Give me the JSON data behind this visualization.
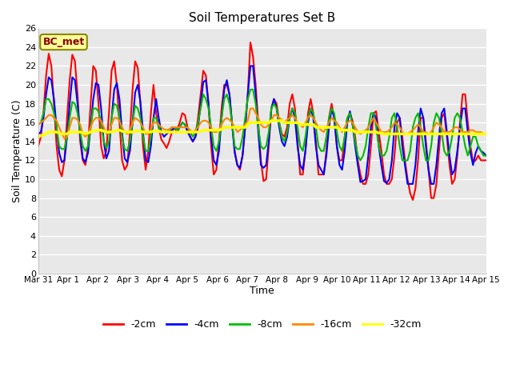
{
  "title": "Soil Temperatures Set B",
  "xlabel": "Time",
  "ylabel": "Soil Temperature (C)",
  "annotation": "BC_met",
  "ylim": [
    0,
    26
  ],
  "yticks": [
    0,
    2,
    4,
    6,
    8,
    10,
    12,
    14,
    16,
    18,
    20,
    22,
    24,
    26
  ],
  "xtick_labels": [
    "Mar 31",
    "Apr 1",
    "Apr 2",
    "Apr 3",
    "Apr 4",
    "Apr 5",
    "Apr 6",
    "Apr 7",
    "Apr 8",
    "Apr 9",
    "Apr 10",
    "Apr 11",
    "Apr 12",
    "Apr 13",
    "Apr 14",
    "Apr 15"
  ],
  "line_colors": {
    "-2cm": "#FF0000",
    "-4cm": "#0000FF",
    "-8cm": "#00BB00",
    "-16cm": "#FF8800",
    "-32cm": "#FFFF00"
  },
  "line_widths": {
    "-2cm": 1.5,
    "-4cm": 1.5,
    "-8cm": 1.5,
    "-16cm": 1.5,
    "-32cm": 2.5
  },
  "n_points": 337,
  "series": {
    "-2cm": [
      13.5,
      14.5,
      17.0,
      21.0,
      23.3,
      22.0,
      18.0,
      13.5,
      11.0,
      10.3,
      12.0,
      16.5,
      20.5,
      23.2,
      22.5,
      19.0,
      14.0,
      12.0,
      11.5,
      13.5,
      18.0,
      22.0,
      21.5,
      18.0,
      13.5,
      12.2,
      13.0,
      17.0,
      21.5,
      22.5,
      20.0,
      16.0,
      12.0,
      11.0,
      11.5,
      15.0,
      19.5,
      22.5,
      21.8,
      18.0,
      13.5,
      11.0,
      13.0,
      17.0,
      20.0,
      17.0,
      15.5,
      14.2,
      13.8,
      13.3,
      14.0,
      15.0,
      15.5,
      15.2,
      16.0,
      17.0,
      16.8,
      15.5,
      14.5,
      14.0,
      14.5,
      16.5,
      19.0,
      21.5,
      21.0,
      18.0,
      13.5,
      10.5,
      11.0,
      14.0,
      17.5,
      20.0,
      20.0,
      19.0,
      16.0,
      13.0,
      11.5,
      11.0,
      12.5,
      15.5,
      19.0,
      24.5,
      23.0,
      20.0,
      16.0,
      12.0,
      9.8,
      10.0,
      13.5,
      17.5,
      18.5,
      18.0,
      16.0,
      14.8,
      14.5,
      15.5,
      18.0,
      19.0,
      17.5,
      14.0,
      10.5,
      10.5,
      13.0,
      17.0,
      18.5,
      17.0,
      14.0,
      10.5,
      10.5,
      10.5,
      13.0,
      16.5,
      18.0,
      16.5,
      13.5,
      12.0,
      12.0,
      14.5,
      16.5,
      17.0,
      16.2,
      14.5,
      12.0,
      10.5,
      9.5,
      9.5,
      10.5,
      13.5,
      17.0,
      17.2,
      15.0,
      13.0,
      10.5,
      9.5,
      9.5,
      10.0,
      12.5,
      16.0,
      16.5,
      14.5,
      12.0,
      10.0,
      8.5,
      7.8,
      9.0,
      12.0,
      16.5,
      16.5,
      14.0,
      11.0,
      8.0,
      8.0,
      9.5,
      13.0,
      16.5,
      17.0,
      14.5,
      11.5,
      9.5,
      10.0,
      12.5,
      16.0,
      19.0,
      19.0,
      16.0,
      13.5,
      11.8,
      12.0,
      12.5,
      12.0,
      12.0,
      12.0
    ],
    "-4cm": [
      14.8,
      15.0,
      16.5,
      19.0,
      20.8,
      20.5,
      18.5,
      15.5,
      12.8,
      11.8,
      12.0,
      14.5,
      18.0,
      20.8,
      20.5,
      18.0,
      14.8,
      12.2,
      11.8,
      12.8,
      15.5,
      18.5,
      20.2,
      20.0,
      17.5,
      14.0,
      12.2,
      13.0,
      16.5,
      19.5,
      20.2,
      18.5,
      15.0,
      12.2,
      11.8,
      13.0,
      16.0,
      19.2,
      20.0,
      18.2,
      15.0,
      12.0,
      11.8,
      13.5,
      16.5,
      18.5,
      16.5,
      15.0,
      14.5,
      14.8,
      15.0,
      15.2,
      15.5,
      15.0,
      15.5,
      16.0,
      15.8,
      15.0,
      14.5,
      14.0,
      14.5,
      15.5,
      18.0,
      20.3,
      20.5,
      18.0,
      14.5,
      12.0,
      11.5,
      13.0,
      16.5,
      19.5,
      20.5,
      19.0,
      15.8,
      12.8,
      11.5,
      11.2,
      12.5,
      15.5,
      19.0,
      22.0,
      22.0,
      19.0,
      15.0,
      11.5,
      11.2,
      11.5,
      14.0,
      17.5,
      18.5,
      17.5,
      15.5,
      14.0,
      13.5,
      14.5,
      16.5,
      17.5,
      16.5,
      13.5,
      11.5,
      11.0,
      13.0,
      16.0,
      17.5,
      16.5,
      13.5,
      11.5,
      11.0,
      10.5,
      12.5,
      15.5,
      17.5,
      16.5,
      13.5,
      11.5,
      11.0,
      13.0,
      16.0,
      17.2,
      15.8,
      13.5,
      11.5,
      9.7,
      9.8,
      10.0,
      12.5,
      15.5,
      17.0,
      16.5,
      13.5,
      11.5,
      9.8,
      9.6,
      10.0,
      12.0,
      15.5,
      17.0,
      16.5,
      13.5,
      11.5,
      9.5,
      9.5,
      9.5,
      11.5,
      15.0,
      17.5,
      16.5,
      13.5,
      11.0,
      9.5,
      9.5,
      11.5,
      14.5,
      17.0,
      17.5,
      15.0,
      12.5,
      10.5,
      11.0,
      13.0,
      15.5,
      17.5,
      17.5,
      15.0,
      12.8,
      11.5,
      12.8,
      13.5,
      13.0,
      12.8,
      12.5
    ],
    "-8cm": [
      15.8,
      16.0,
      17.0,
      18.5,
      18.5,
      18.0,
      17.0,
      15.5,
      13.5,
      13.2,
      13.2,
      14.5,
      16.5,
      18.2,
      18.0,
      17.0,
      15.0,
      13.5,
      13.0,
      13.5,
      15.5,
      17.5,
      17.5,
      17.2,
      16.0,
      14.0,
      13.3,
      14.0,
      16.5,
      18.0,
      17.8,
      16.5,
      14.5,
      13.2,
      13.0,
      14.0,
      16.0,
      17.8,
      17.5,
      16.5,
      14.5,
      13.0,
      13.0,
      14.5,
      16.5,
      16.5,
      15.5,
      15.0,
      15.0,
      15.0,
      15.2,
      15.5,
      15.5,
      15.2,
      15.5,
      16.0,
      15.8,
      15.5,
      15.0,
      14.5,
      15.0,
      16.0,
      17.5,
      19.0,
      18.5,
      17.5,
      15.5,
      13.5,
      13.0,
      14.0,
      16.5,
      18.5,
      19.0,
      18.0,
      16.0,
      13.5,
      13.2,
      13.2,
      14.5,
      16.5,
      18.5,
      19.5,
      19.5,
      18.0,
      15.5,
      13.5,
      13.2,
      13.5,
      15.0,
      17.5,
      18.0,
      17.5,
      16.0,
      14.5,
      14.0,
      15.0,
      16.5,
      17.5,
      17.0,
      15.5,
      13.5,
      13.0,
      14.5,
      16.5,
      17.5,
      17.0,
      15.5,
      13.5,
      13.0,
      13.0,
      14.5,
      16.5,
      17.5,
      17.0,
      15.0,
      13.5,
      13.0,
      14.5,
      16.5,
      17.0,
      15.8,
      14.0,
      12.5,
      12.0,
      12.5,
      13.5,
      15.5,
      17.0,
      17.0,
      15.5,
      13.5,
      12.5,
      12.5,
      13.0,
      14.5,
      16.5,
      17.0,
      15.5,
      13.5,
      12.0,
      12.0,
      12.0,
      13.0,
      15.5,
      16.5,
      17.0,
      15.5,
      13.5,
      12.0,
      12.0,
      13.5,
      16.0,
      17.0,
      16.5,
      15.0,
      13.0,
      12.5,
      13.0,
      14.5,
      16.5,
      17.0,
      16.5,
      15.0,
      13.5,
      12.5,
      13.5,
      14.5,
      14.5,
      13.5,
      13.0,
      12.5,
      12.5
    ],
    "-16cm": [
      15.8,
      16.0,
      16.2,
      16.5,
      16.8,
      16.8,
      16.5,
      16.2,
      15.5,
      14.8,
      14.3,
      14.5,
      15.5,
      16.5,
      16.5,
      16.3,
      15.8,
      14.8,
      14.5,
      14.8,
      15.5,
      16.2,
      16.5,
      16.5,
      16.2,
      15.5,
      14.8,
      15.0,
      15.8,
      16.5,
      16.5,
      16.2,
      15.5,
      15.0,
      14.8,
      15.2,
      16.0,
      16.5,
      16.3,
      16.0,
      15.5,
      14.8,
      14.8,
      15.3,
      16.0,
      16.0,
      15.8,
      15.5,
      15.3,
      15.2,
      15.3,
      15.5,
      15.5,
      15.5,
      15.5,
      15.5,
      15.5,
      15.5,
      15.2,
      15.0,
      15.2,
      15.5,
      16.0,
      16.2,
      16.2,
      16.0,
      15.5,
      15.0,
      15.0,
      15.2,
      15.8,
      16.3,
      16.5,
      16.3,
      16.0,
      15.5,
      15.0,
      15.2,
      15.5,
      15.8,
      16.2,
      17.5,
      17.5,
      17.0,
      16.5,
      15.8,
      15.5,
      15.5,
      15.8,
      16.2,
      16.8,
      16.8,
      16.5,
      16.3,
      16.0,
      16.3,
      16.5,
      16.8,
      16.5,
      16.0,
      15.8,
      15.5,
      16.0,
      16.5,
      16.8,
      16.5,
      16.0,
      15.5,
      15.2,
      15.0,
      15.5,
      16.0,
      16.5,
      16.2,
      16.0,
      15.5,
      15.0,
      15.5,
      16.0,
      16.2,
      16.0,
      15.5,
      15.0,
      14.8,
      15.0,
      15.2,
      15.5,
      16.0,
      16.5,
      16.0,
      15.5,
      15.0,
      15.0,
      15.0,
      15.2,
      15.5,
      16.0,
      15.8,
      15.5,
      15.0,
      14.8,
      14.8,
      15.0,
      15.2,
      15.5,
      15.8,
      15.5,
      15.0,
      15.0,
      14.8,
      15.0,
      15.5,
      16.0,
      15.8,
      15.5,
      15.0,
      15.0,
      15.0,
      15.2,
      15.5,
      15.5,
      15.3,
      15.0,
      15.0,
      15.0,
      15.2,
      15.2,
      15.0,
      15.0,
      15.0,
      14.8,
      14.8
    ],
    "-32cm": [
      14.5,
      14.6,
      14.7,
      14.8,
      15.0,
      15.0,
      15.0,
      15.0,
      14.9,
      14.8,
      14.8,
      14.8,
      15.0,
      15.0,
      15.0,
      15.0,
      15.0,
      14.9,
      14.8,
      14.9,
      15.0,
      15.1,
      15.2,
      15.2,
      15.2,
      15.1,
      15.0,
      15.0,
      15.0,
      15.1,
      15.2,
      15.2,
      15.1,
      15.0,
      15.0,
      15.0,
      15.0,
      15.1,
      15.1,
      15.1,
      15.0,
      15.0,
      15.0,
      15.0,
      15.1,
      15.1,
      15.1,
      15.0,
      15.0,
      15.0,
      15.0,
      15.0,
      15.0,
      15.0,
      15.0,
      15.0,
      15.0,
      15.0,
      15.0,
      15.0,
      15.0,
      15.0,
      15.1,
      15.2,
      15.2,
      15.2,
      15.2,
      15.2,
      15.2,
      15.2,
      15.3,
      15.5,
      15.5,
      15.5,
      15.5,
      15.5,
      15.5,
      15.5,
      15.5,
      15.5,
      15.8,
      16.0,
      16.0,
      16.0,
      16.0,
      16.0,
      16.0,
      16.0,
      16.0,
      16.2,
      16.2,
      16.2,
      16.2,
      16.2,
      16.0,
      16.0,
      16.0,
      16.0,
      16.0,
      16.0,
      15.8,
      15.8,
      15.8,
      15.8,
      15.8,
      15.8,
      15.5,
      15.5,
      15.5,
      15.5,
      15.5,
      15.5,
      15.5,
      15.5,
      15.5,
      15.3,
      15.2,
      15.2,
      15.2,
      15.2,
      15.2,
      15.0,
      15.0,
      15.0,
      15.0,
      15.0,
      15.0,
      15.0,
      15.0,
      15.0,
      14.9,
      14.9,
      14.8,
      14.8,
      14.8,
      14.8,
      14.8,
      14.8,
      14.8,
      14.8,
      14.8,
      14.8,
      14.8,
      14.8,
      14.8,
      14.8,
      14.8,
      14.8,
      14.8,
      14.8,
      14.8,
      14.8,
      14.8,
      14.8,
      14.8,
      14.8,
      14.8,
      14.8,
      14.8,
      14.8,
      14.8,
      14.8,
      14.8,
      14.8,
      14.8,
      14.8,
      14.8,
      14.8,
      14.8,
      14.8,
      14.8,
      14.8
    ]
  },
  "background_color": "#FFFFFF",
  "plot_bg_color": "#E8E8E8",
  "grid_color": "#FFFFFF",
  "annotation_bg": "#FFFF99",
  "annotation_fg": "#8B0000",
  "annotation_border": "#888800"
}
